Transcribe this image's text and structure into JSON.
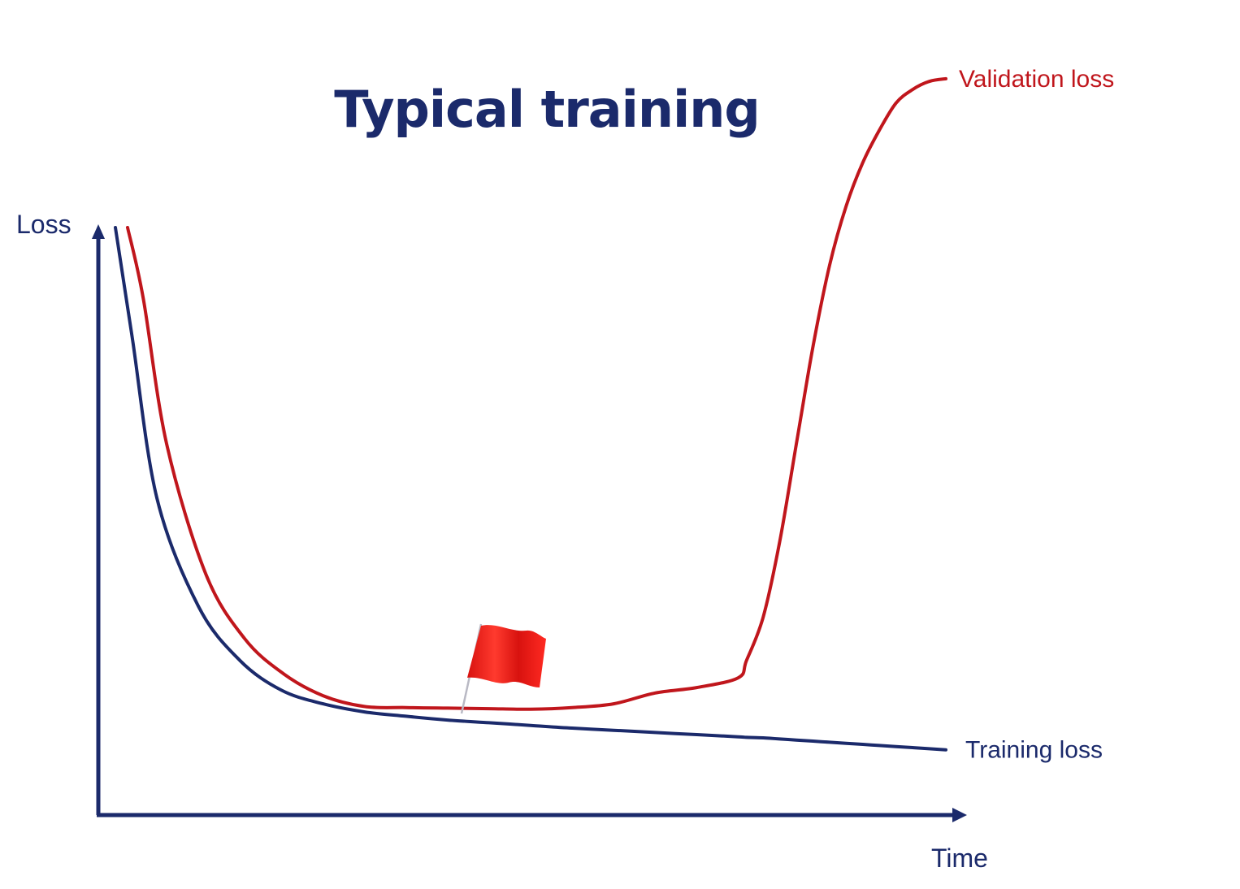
{
  "chart_data": {
    "type": "line",
    "title": "Typical training",
    "xlabel": "Time",
    "ylabel": "Loss",
    "grid": false,
    "x": [
      0,
      0.02,
      0.05,
      0.1,
      0.15,
      0.2,
      0.25,
      0.3,
      0.35,
      0.4,
      0.45,
      0.5,
      0.55,
      0.6,
      0.65,
      0.7,
      0.75,
      0.76,
      0.78,
      0.8,
      0.82,
      0.84,
      0.86,
      0.88,
      0.9,
      0.92,
      0.94,
      0.96,
      0.98,
      1.0
    ],
    "series": [
      {
        "name": "Training loss",
        "color": "#1b2a6b",
        "values": [
          1.0,
          0.8,
          0.5,
          0.3,
          0.2,
          0.145,
          0.12,
          0.105,
          0.097,
          0.09,
          0.085,
          0.08,
          0.075,
          0.071,
          0.067,
          0.063,
          0.059,
          0.058,
          0.057,
          0.055,
          0.053,
          0.051,
          0.049,
          0.047,
          0.045,
          0.043,
          0.041,
          0.039,
          0.037,
          0.035
        ]
      },
      {
        "name": "Validation loss",
        "color": "#c0161c",
        "values": [
          1.0,
          0.87,
          0.6,
          0.36,
          0.24,
          0.175,
          0.135,
          0.115,
          0.113,
          0.112,
          0.111,
          0.11,
          0.113,
          0.12,
          0.14,
          0.15,
          0.168,
          0.2,
          0.28,
          0.42,
          0.6,
          0.78,
          0.93,
          1.04,
          1.12,
          1.18,
          1.23,
          1.255,
          1.27,
          1.275
        ]
      }
    ],
    "annotation": {
      "type": "flag",
      "icon": "red-flag-icon",
      "x": 0.4,
      "meaning": "early stopping point"
    }
  }
}
